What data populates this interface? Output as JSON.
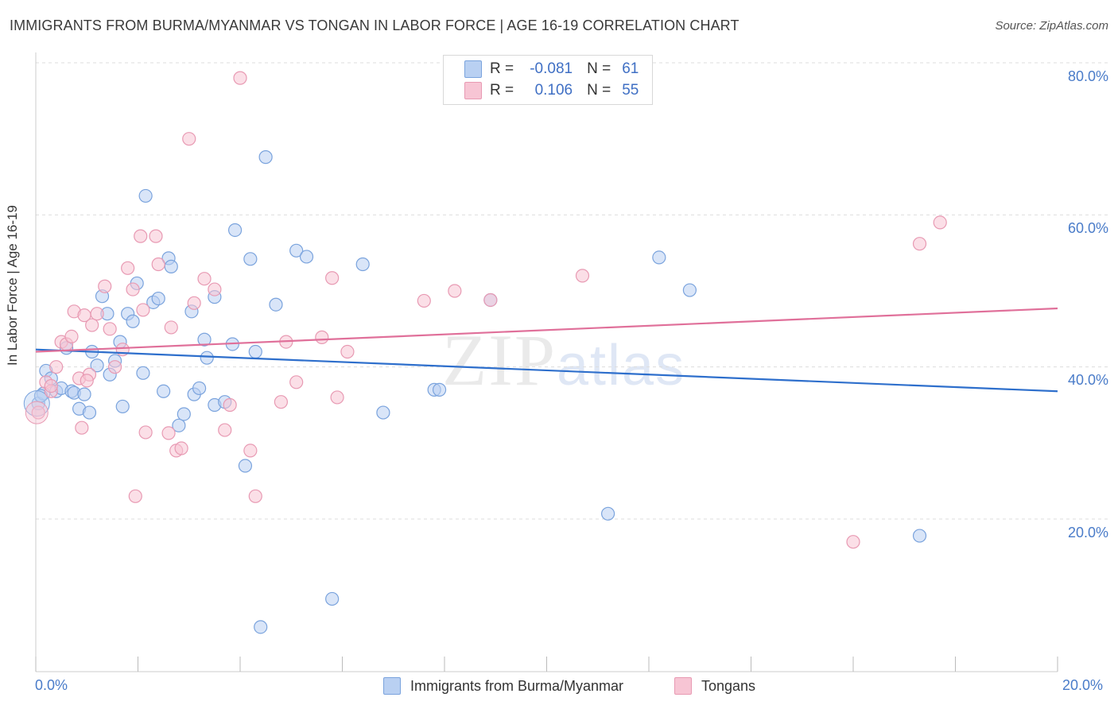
{
  "title": "IMMIGRANTS FROM BURMA/MYANMAR VS TONGAN IN LABOR FORCE | AGE 16-19 CORRELATION CHART",
  "source": "Source: ZipAtlas.com",
  "watermark": {
    "zip": "ZIP",
    "atlas": "atlas"
  },
  "legend": {
    "rows": [
      {
        "r_label": "R =",
        "r_value": "-0.081",
        "n_label": "N =",
        "n_value": "61"
      },
      {
        "r_label": "R =",
        "r_value": "0.106",
        "n_label": "N =",
        "n_value": "55"
      }
    ]
  },
  "colors": {
    "blue_fill": "#b9d0f2",
    "blue_stroke": "#7aa3dd",
    "blue_line": "#2e6fcc",
    "pink_fill": "#f7c5d4",
    "pink_stroke": "#e89ab3",
    "pink_line": "#e0709a",
    "grid": "#dddddd",
    "tick_text": "#4a7cc9"
  },
  "chart_data": {
    "type": "scatter",
    "title": "IMMIGRANTS FROM BURMA/MYANMAR VS TONGAN IN LABOR FORCE | AGE 16-19 CORRELATION CHART",
    "xlabel": "",
    "ylabel": "In Labor Force | Age 16-19",
    "xlim": [
      0,
      20
    ],
    "ylim": [
      0,
      83
    ],
    "y_ticks": [
      "20.0%",
      "40.0%",
      "60.0%",
      "80.0%"
    ],
    "y_tick_values": [
      20,
      40,
      60,
      80
    ],
    "x_ticks": [
      "0.0%",
      "20.0%"
    ],
    "grid": true,
    "series": [
      {
        "name": "Immigrants from Burma/Myanmar",
        "color": "#b9d0f2",
        "trend": [
          [
            0,
            42.3
          ],
          [
            20,
            36.8
          ]
        ],
        "points": [
          [
            0.05,
            35.2
          ],
          [
            0.15,
            36.5
          ],
          [
            0.2,
            39.5
          ],
          [
            0.3,
            38.5
          ],
          [
            0.4,
            36.8
          ],
          [
            0.5,
            37.2
          ],
          [
            0.6,
            42.5
          ],
          [
            0.7,
            36.8
          ],
          [
            0.75,
            36.6
          ],
          [
            0.85,
            34.5
          ],
          [
            0.95,
            36.4
          ],
          [
            1.05,
            34.0
          ],
          [
            1.1,
            42.0
          ],
          [
            1.2,
            40.2
          ],
          [
            1.3,
            49.3
          ],
          [
            1.4,
            47.0
          ],
          [
            1.45,
            39.0
          ],
          [
            1.55,
            40.8
          ],
          [
            1.65,
            43.3
          ],
          [
            1.7,
            34.8
          ],
          [
            1.8,
            47.0
          ],
          [
            1.9,
            46.0
          ],
          [
            1.98,
            51.0
          ],
          [
            2.1,
            39.2
          ],
          [
            2.15,
            62.5
          ],
          [
            2.3,
            48.5
          ],
          [
            2.4,
            49.0
          ],
          [
            2.5,
            36.8
          ],
          [
            2.6,
            54.3
          ],
          [
            2.65,
            53.2
          ],
          [
            2.8,
            32.3
          ],
          [
            2.9,
            33.8
          ],
          [
            3.05,
            47.3
          ],
          [
            3.1,
            36.4
          ],
          [
            3.2,
            37.2
          ],
          [
            3.3,
            43.6
          ],
          [
            3.35,
            41.2
          ],
          [
            3.5,
            49.2
          ],
          [
            3.5,
            35.0
          ],
          [
            3.7,
            35.4
          ],
          [
            3.85,
            43.0
          ],
          [
            3.9,
            58.0
          ],
          [
            4.1,
            27.0
          ],
          [
            4.2,
            54.2
          ],
          [
            4.3,
            42.0
          ],
          [
            4.5,
            67.6
          ],
          [
            4.7,
            48.2
          ],
          [
            5.1,
            55.3
          ],
          [
            5.3,
            54.5
          ],
          [
            5.8,
            9.5
          ],
          [
            6.4,
            53.5
          ],
          [
            6.8,
            34.0
          ],
          [
            7.8,
            37.0
          ],
          [
            7.9,
            37.0
          ],
          [
            8.9,
            48.8
          ],
          [
            4.4,
            5.8
          ],
          [
            11.2,
            20.7
          ],
          [
            12.2,
            54.4
          ],
          [
            12.8,
            50.1
          ],
          [
            17.3,
            17.8
          ],
          [
            0.1,
            36.2
          ]
        ]
      },
      {
        "name": "Tongans",
        "color": "#f7c5d4",
        "trend": [
          [
            0,
            42.0
          ],
          [
            20,
            47.7
          ]
        ],
        "points": [
          [
            0.05,
            34.0
          ],
          [
            0.2,
            38.0
          ],
          [
            0.3,
            36.8
          ],
          [
            0.4,
            40.0
          ],
          [
            0.5,
            43.3
          ],
          [
            0.6,
            43.0
          ],
          [
            0.7,
            44.0
          ],
          [
            0.75,
            47.3
          ],
          [
            0.85,
            38.5
          ],
          [
            0.9,
            32.0
          ],
          [
            0.95,
            46.8
          ],
          [
            1.05,
            39.0
          ],
          [
            1.1,
            45.5
          ],
          [
            1.2,
            47.0
          ],
          [
            1.35,
            50.6
          ],
          [
            1.45,
            45.0
          ],
          [
            1.55,
            40.0
          ],
          [
            1.7,
            42.3
          ],
          [
            1.8,
            53.0
          ],
          [
            1.9,
            50.2
          ],
          [
            1.95,
            23.0
          ],
          [
            2.05,
            57.2
          ],
          [
            2.15,
            31.4
          ],
          [
            2.35,
            57.2
          ],
          [
            2.4,
            53.5
          ],
          [
            2.6,
            31.3
          ],
          [
            2.65,
            45.2
          ],
          [
            2.75,
            29.0
          ],
          [
            2.85,
            29.3
          ],
          [
            3.0,
            70.0
          ],
          [
            3.1,
            48.4
          ],
          [
            3.3,
            51.6
          ],
          [
            3.5,
            50.2
          ],
          [
            3.7,
            31.7
          ],
          [
            3.8,
            35.0
          ],
          [
            4.0,
            78.0
          ],
          [
            4.2,
            29.0
          ],
          [
            4.3,
            23.0
          ],
          [
            4.8,
            35.4
          ],
          [
            4.9,
            43.3
          ],
          [
            5.1,
            38.0
          ],
          [
            5.6,
            43.9
          ],
          [
            5.8,
            51.7
          ],
          [
            5.9,
            36.0
          ],
          [
            6.1,
            42.0
          ],
          [
            7.6,
            48.7
          ],
          [
            8.2,
            50.0
          ],
          [
            8.9,
            48.8
          ],
          [
            10.7,
            52.0
          ],
          [
            16.0,
            17.0
          ],
          [
            17.3,
            56.2
          ],
          [
            17.7,
            59.0
          ],
          [
            2.1,
            47.5
          ],
          [
            1.0,
            38.2
          ],
          [
            0.3,
            37.5
          ]
        ]
      }
    ]
  },
  "bottom_legend": [
    "Immigrants from Burma/Myanmar",
    "Tongans"
  ]
}
